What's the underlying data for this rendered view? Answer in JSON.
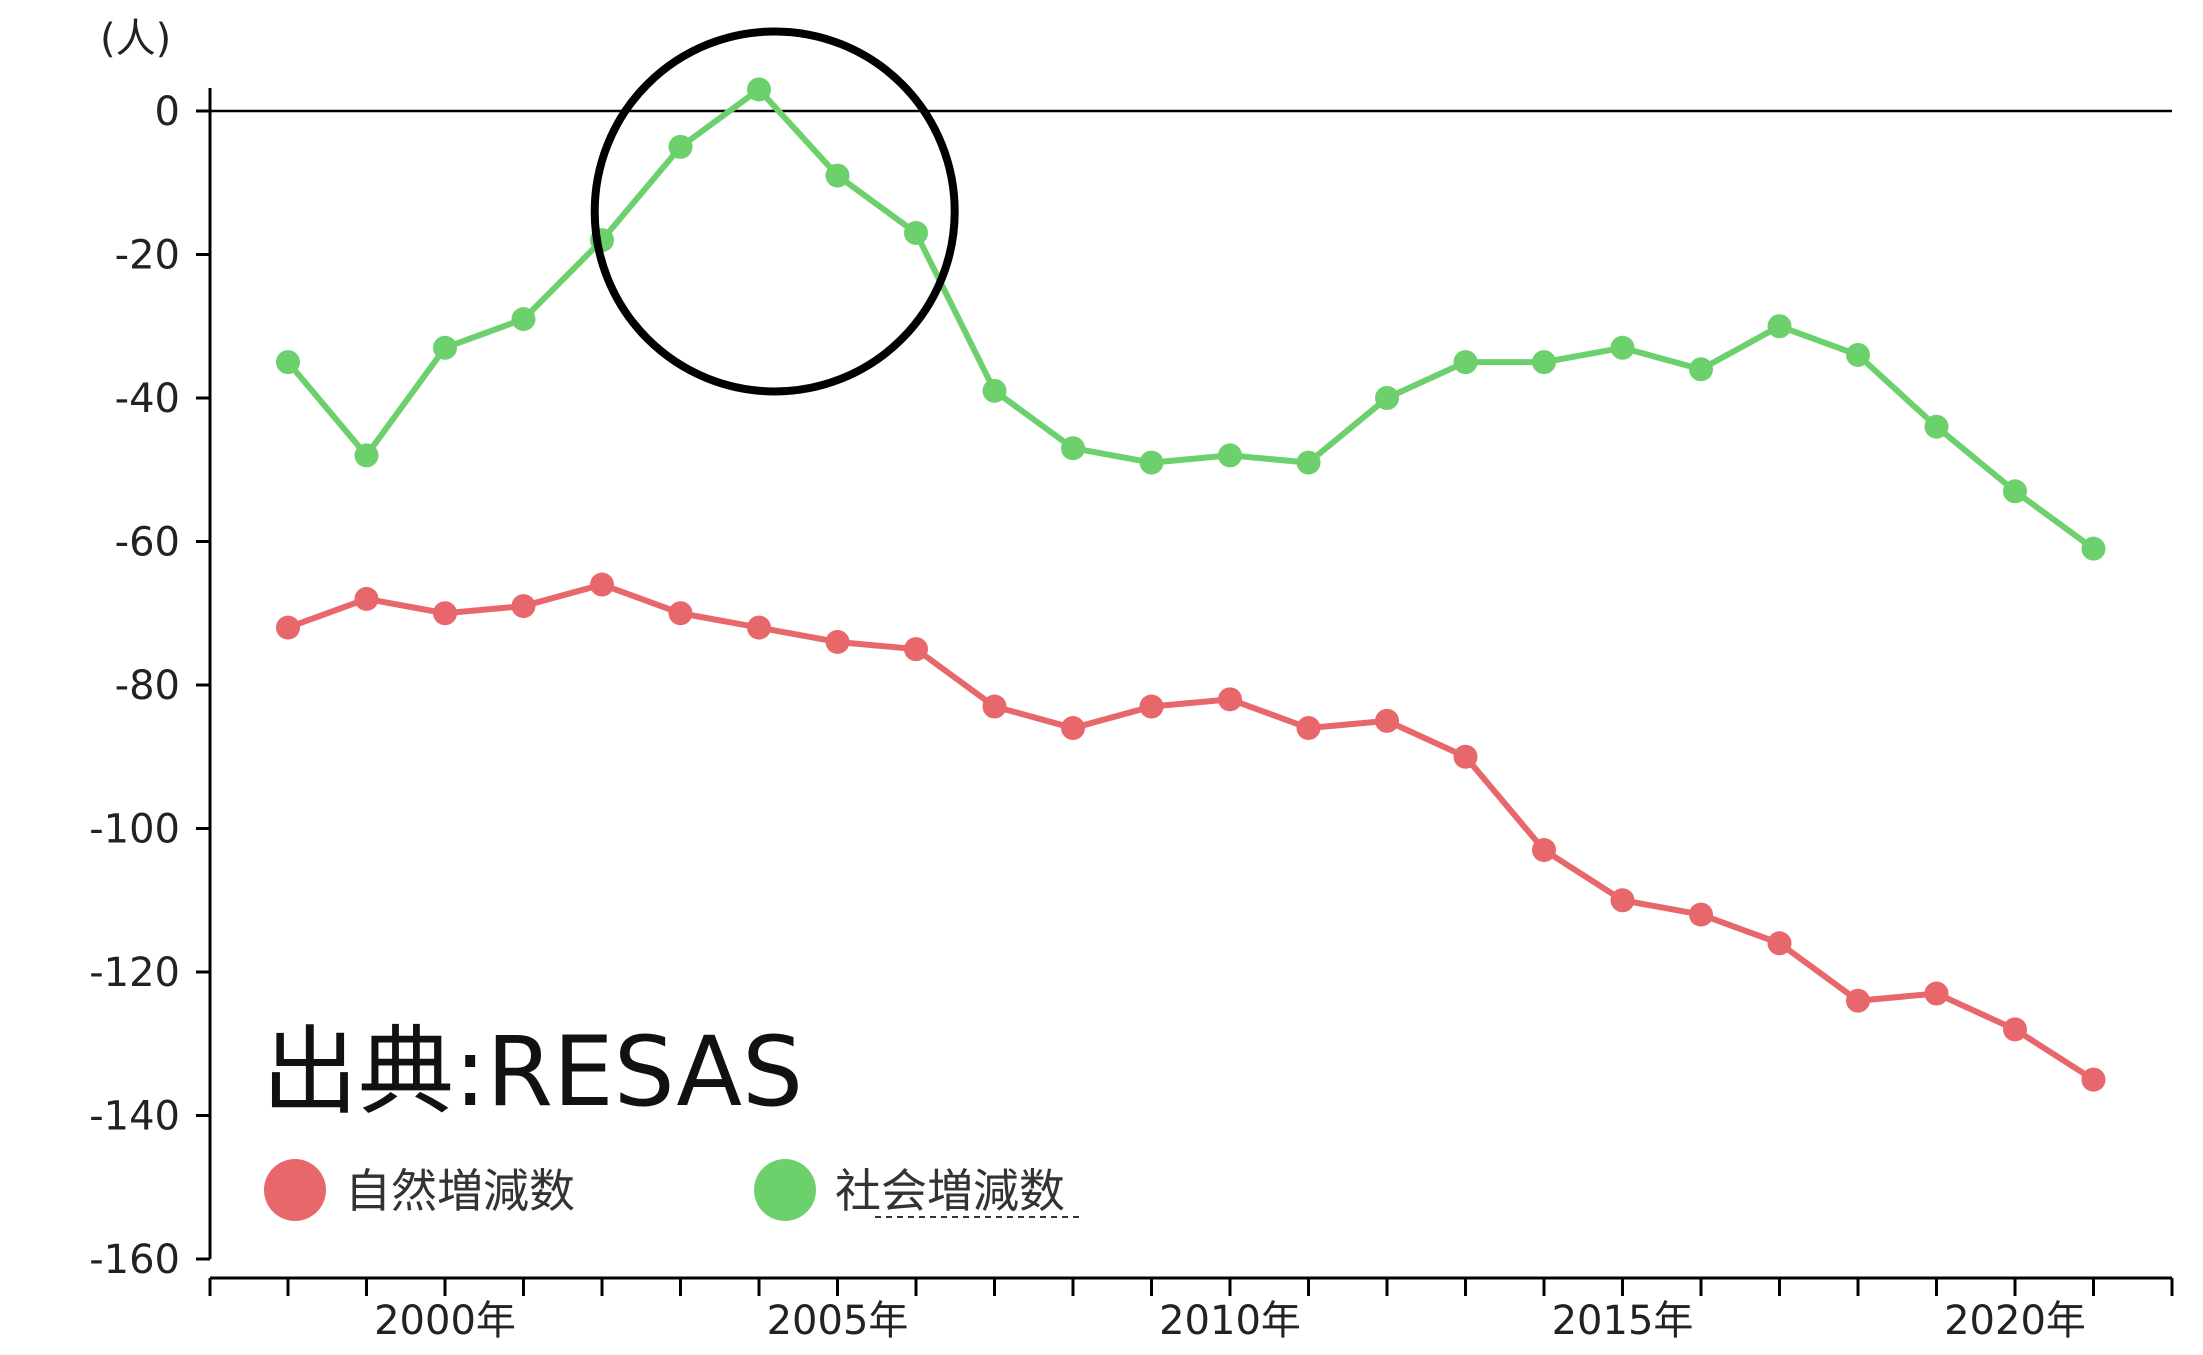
{
  "chart_data": {
    "type": "line",
    "title": "",
    "xlabel": "",
    "ylabel": "(人)",
    "ylim": [
      -160,
      5
    ],
    "yticks": [
      0,
      -20,
      -40,
      -60,
      -80,
      -100,
      -120,
      -140,
      -160
    ],
    "x": [
      1998,
      1999,
      2000,
      2001,
      2002,
      2003,
      2004,
      2005,
      2006,
      2007,
      2008,
      2009,
      2010,
      2011,
      2012,
      2013,
      2014,
      2015,
      2016,
      2017,
      2018,
      2019,
      2020,
      2021
    ],
    "xtick_labels": [
      {
        "x": 2000,
        "label": "2000年"
      },
      {
        "x": 2005,
        "label": "2005年"
      },
      {
        "x": 2010,
        "label": "2010年"
      },
      {
        "x": 2015,
        "label": "2015年"
      },
      {
        "x": 2020,
        "label": "2020年"
      }
    ],
    "series": [
      {
        "name": "自然増減数",
        "color": "#e8676a",
        "values": [
          -72,
          -68,
          -70,
          -69,
          -66,
          -70,
          -72,
          -74,
          -75,
          -83,
          -86,
          -83,
          -82,
          -86,
          -85,
          -90,
          -103,
          -110,
          -112,
          -116,
          -124,
          -123,
          -128,
          -135
        ]
      },
      {
        "name": "社会増減数",
        "color": "#6cd06c",
        "values": [
          -35,
          -48,
          -33,
          -29,
          -18,
          -5,
          3,
          -9,
          -17,
          -39,
          -47,
          -49,
          -48,
          -49,
          -40,
          -35,
          -35,
          -33,
          -36,
          -30,
          -34,
          -44,
          -53,
          -61
        ]
      }
    ],
    "annotation": {
      "type": "circle",
      "center_x": 2004.2,
      "center_y": -14,
      "color": "#000000"
    },
    "source": "出典:RESAS",
    "legend": "bottom-left",
    "grid": false
  }
}
